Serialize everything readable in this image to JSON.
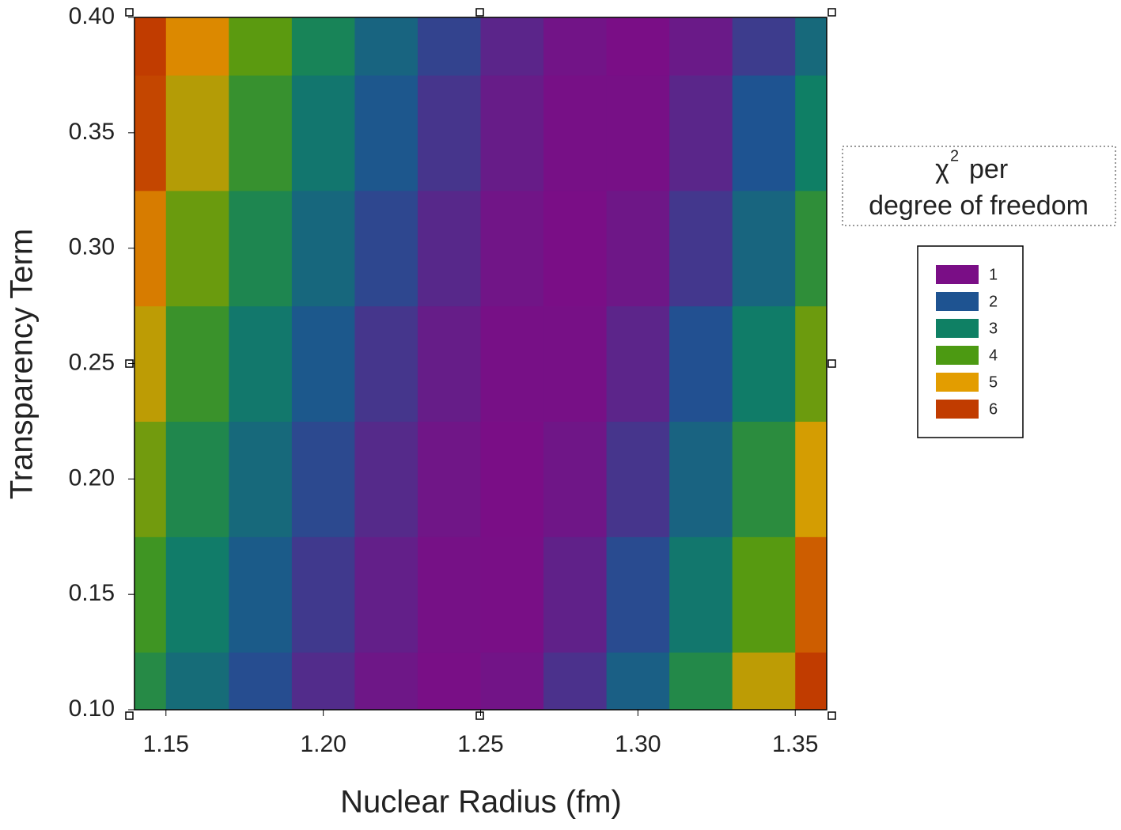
{
  "chart_data": {
    "type": "contour",
    "x_label": "Nuclear Radius (fm)",
    "y_label": "Transparency Term",
    "xlim": [
      1.14,
      1.36
    ],
    "ylim": [
      0.1,
      0.4
    ],
    "xticks": [
      1.15,
      {
        "value": 1.2,
        "label": "1.20"
      },
      1.25,
      {
        "value": 1.3,
        "label": "1.30"
      },
      1.35
    ],
    "yticks": [
      {
        "value": 0.1,
        "label": "0.10"
      },
      0.15,
      {
        "value": 0.2,
        "label": "0.20"
      },
      0.25,
      {
        "value": 0.3,
        "label": "0.30"
      },
      0.35,
      {
        "value": 0.4,
        "label": "0.40"
      }
    ],
    "x": [
      1.14,
      1.16,
      1.18,
      1.2,
      1.22,
      1.24,
      1.26,
      1.28,
      1.3,
      1.32,
      1.34,
      1.36
    ],
    "y": [
      0.1,
      0.15,
      0.2,
      0.25,
      0.3,
      0.35,
      0.4
    ],
    "z": [
      [
        3.37,
        2.55,
        1.91,
        1.44,
        1.13,
        1.01,
        1.09,
        1.51,
        2.26,
        3.33,
        4.75,
        6.49
      ],
      [
        3.79,
        2.9,
        2.18,
        1.63,
        1.25,
        1.04,
        1.01,
        1.28,
        1.88,
        2.81,
        4.07,
        5.66
      ],
      [
        4.25,
        3.28,
        2.48,
        1.85,
        1.4,
        1.11,
        1.0,
        1.12,
        1.57,
        2.35,
        3.46,
        4.9
      ],
      [
        4.75,
        3.7,
        2.82,
        2.11,
        1.58,
        1.22,
        1.03,
        1.03,
        1.33,
        1.96,
        2.92,
        4.21
      ],
      [
        5.34,
        4.2,
        3.24,
        2.45,
        1.83,
        1.38,
        1.1,
        1.0,
        1.13,
        1.6,
        2.4,
        3.52
      ],
      [
        5.9,
        4.69,
        3.65,
        2.78,
        2.08,
        1.56,
        1.21,
        1.03,
        1.03,
        1.35,
        2.0,
        2.98
      ],
      [
        6.5,
        5.21,
        4.1,
        3.15,
        2.38,
        1.77,
        1.34,
        1.09,
        1.0,
        1.17,
        1.66,
        2.49
      ]
    ],
    "legend_title_symbol": "χ",
    "legend_title_superscript": "2",
    "legend_title_text": "per",
    "legend_title_line2": "degree of freedom",
    "legend": {
      "levels": [
        1,
        2,
        3,
        4,
        5,
        6
      ],
      "colors": [
        "#7a0e86",
        "#1e5391",
        "#0f8064",
        "#4c9a12",
        "#e39d00",
        "#c13c00"
      ]
    }
  }
}
